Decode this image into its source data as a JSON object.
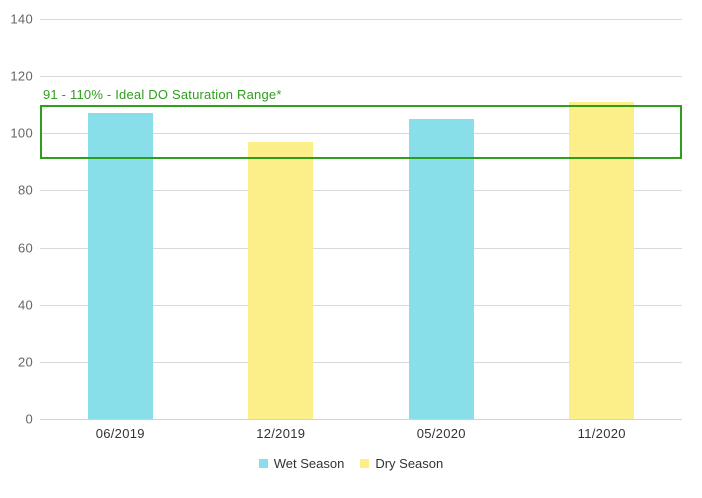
{
  "chart_data": {
    "type": "bar",
    "title": "",
    "categories": [
      "06/2019",
      "12/2019",
      "05/2020",
      "11/2020"
    ],
    "values": [
      107,
      97,
      105,
      111
    ],
    "point_series": [
      "Wet Season",
      "Dry Season",
      "Wet Season",
      "Dry Season"
    ],
    "series": [
      {
        "name": "Wet Season",
        "color": "#88DFEA"
      },
      {
        "name": "Dry Season",
        "color": "#FCEE88"
      }
    ],
    "xlabel": "",
    "ylabel": "",
    "ylim": [
      0,
      140
    ],
    "yticks": [
      0,
      20,
      40,
      60,
      80,
      100,
      120,
      140
    ],
    "grid": true,
    "legend_position": "bottom",
    "annotation": {
      "label": "91 - 110% - Ideal DO Saturation Range*",
      "band_range": [
        91,
        110
      ],
      "color": "#2E9E1B"
    }
  },
  "colors": {
    "background": "#FFFFFF",
    "gridline": "#D9D9D9",
    "axis_line": "#D3D3D3",
    "tick_label": "#666666",
    "category_label": "#333333",
    "legend_text": "#333333"
  }
}
